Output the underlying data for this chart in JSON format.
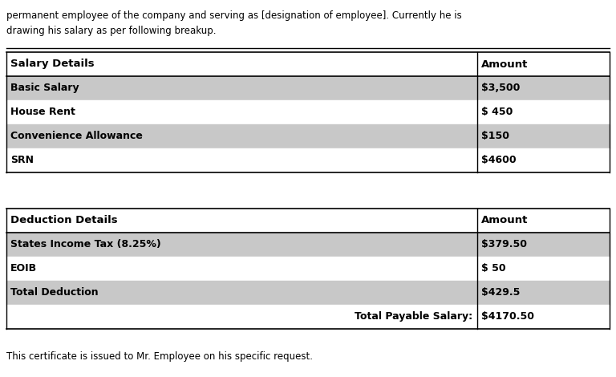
{
  "header_text1": "permanent employee of the company and serving as [designation of employee]. Currently he is",
  "header_text2": "drawing his salary as per following breakup.",
  "footer_text": "This certificate is issued to Mr. Employee on his specific request.",
  "salary_table": {
    "header": [
      "Salary Details",
      "Amount"
    ],
    "rows": [
      {
        "label": "Basic Salary",
        "amount": "$3,500",
        "shaded": true
      },
      {
        "label": "House Rent",
        "amount": "$ 450",
        "shaded": false
      },
      {
        "label": "Convenience Allowance",
        "amount": "$150",
        "shaded": true
      },
      {
        "label": "SRN",
        "amount": "$4600",
        "shaded": false
      }
    ]
  },
  "deduction_table": {
    "header": [
      "Deduction Details",
      "Amount"
    ],
    "rows": [
      {
        "label": "States Income Tax (8.25%)",
        "amount": "$379.50",
        "shaded": true
      },
      {
        "label": "EOIB",
        "amount": "$ 50",
        "shaded": false
      },
      {
        "label": "Total Deduction",
        "amount": "$429.5",
        "shaded": true
      },
      {
        "label": "Total Payable Salary:",
        "amount": "$4170.50",
        "shaded": false,
        "right_align_label": true
      }
    ]
  },
  "bg_color": "#ffffff",
  "shaded_color": "#c8c8c8",
  "header_row_color": "#ffffff",
  "border_color": "#000000",
  "text_color": "#000000",
  "col_split": 0.78
}
